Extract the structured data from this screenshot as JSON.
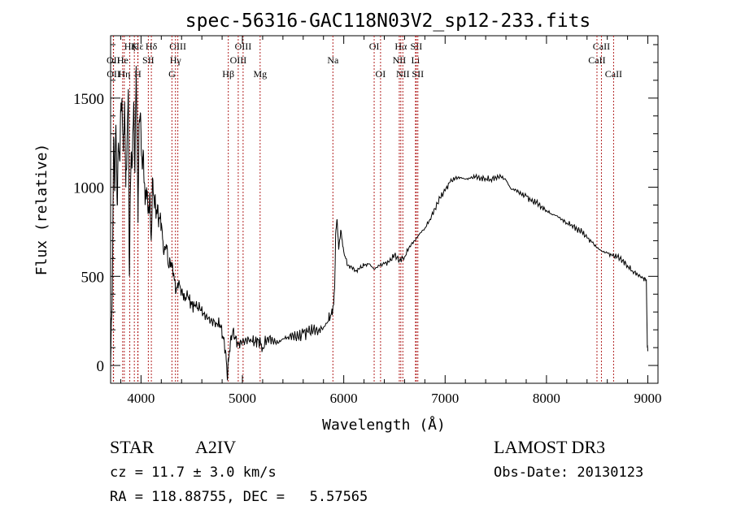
{
  "chart_data": {
    "type": "line",
    "title": "spec-56316-GAC118N03V2_sp12-233.fits",
    "xlabel": "Wavelength (Å)",
    "ylabel": "Flux (relative)",
    "xlim": [
      3700,
      9100
    ],
    "ylim": [
      -100,
      1850
    ],
    "xticks": [
      4000,
      5000,
      6000,
      7000,
      8000,
      9000
    ],
    "yticks": [
      0,
      500,
      1000,
      1500
    ],
    "grid": false,
    "line_color": "#000000",
    "marker_color": "#b22222",
    "spectrum_points": [
      [
        3700,
        0
      ],
      [
        3710,
        260
      ],
      [
        3720,
        600
      ],
      [
        3730,
        1280
      ],
      [
        3742,
        1000
      ],
      [
        3752,
        1350
      ],
      [
        3765,
        900
      ],
      [
        3778,
        1250
      ],
      [
        3790,
        1150
      ],
      [
        3800,
        1420
      ],
      [
        3812,
        1500
      ],
      [
        3825,
        1200
      ],
      [
        3838,
        1480
      ],
      [
        3850,
        1000
      ],
      [
        3862,
        1250
      ],
      [
        3875,
        1550
      ],
      [
        3885,
        500
      ],
      [
        3895,
        980
      ],
      [
        3905,
        1200
      ],
      [
        3915,
        1150
      ],
      [
        3928,
        1480
      ],
      [
        3940,
        1080
      ],
      [
        3952,
        1680
      ],
      [
        3962,
        1250
      ],
      [
        3970,
        800
      ],
      [
        3980,
        1360
      ],
      [
        3990,
        1400
      ],
      [
        4000,
        1300
      ],
      [
        4012,
        1100
      ],
      [
        4025,
        1180
      ],
      [
        4040,
        900
      ],
      [
        4055,
        1000
      ],
      [
        4070,
        850
      ],
      [
        4085,
        950
      ],
      [
        4100,
        700
      ],
      [
        4115,
        1050
      ],
      [
        4130,
        920
      ],
      [
        4145,
        880
      ],
      [
        4160,
        860
      ],
      [
        4180,
        830
      ],
      [
        4200,
        800
      ],
      [
        4225,
        620
      ],
      [
        4250,
        680
      ],
      [
        4270,
        560
      ],
      [
        4295,
        580
      ],
      [
        4320,
        520
      ],
      [
        4345,
        410
      ],
      [
        4370,
        460
      ],
      [
        4400,
        420
      ],
      [
        4430,
        380
      ],
      [
        4460,
        390
      ],
      [
        4500,
        340
      ],
      [
        4540,
        330
      ],
      [
        4580,
        320
      ],
      [
        4620,
        290
      ],
      [
        4660,
        260
      ],
      [
        4700,
        250
      ],
      [
        4740,
        240
      ],
      [
        4780,
        230
      ],
      [
        4810,
        160
      ],
      [
        4835,
        80
      ],
      [
        4850,
        -60
      ],
      [
        4862,
        20
      ],
      [
        4880,
        120
      ],
      [
        4905,
        190
      ],
      [
        4930,
        150
      ],
      [
        4960,
        120
      ],
      [
        5000,
        130
      ],
      [
        5040,
        140
      ],
      [
        5080,
        150
      ],
      [
        5120,
        130
      ],
      [
        5160,
        145
      ],
      [
        5200,
        100
      ],
      [
        5250,
        160
      ],
      [
        5300,
        140
      ],
      [
        5350,
        125
      ],
      [
        5400,
        150
      ],
      [
        5450,
        160
      ],
      [
        5500,
        170
      ],
      [
        5550,
        155
      ],
      [
        5600,
        180
      ],
      [
        5650,
        185
      ],
      [
        5700,
        200
      ],
      [
        5750,
        195
      ],
      [
        5800,
        215
      ],
      [
        5850,
        250
      ],
      [
        5880,
        300
      ],
      [
        5900,
        340
      ],
      [
        5910,
        430
      ],
      [
        5920,
        740
      ],
      [
        5935,
        820
      ],
      [
        5950,
        650
      ],
      [
        5970,
        760
      ],
      [
        6000,
        640
      ],
      [
        6040,
        560
      ],
      [
        6080,
        550
      ],
      [
        6120,
        530
      ],
      [
        6160,
        545
      ],
      [
        6200,
        560
      ],
      [
        6250,
        570
      ],
      [
        6300,
        540
      ],
      [
        6350,
        560
      ],
      [
        6400,
        570
      ],
      [
        6450,
        580
      ],
      [
        6500,
        620
      ],
      [
        6550,
        590
      ],
      [
        6600,
        610
      ],
      [
        6650,
        670
      ],
      [
        6700,
        700
      ],
      [
        6750,
        740
      ],
      [
        6800,
        770
      ],
      [
        6850,
        820
      ],
      [
        6900,
        880
      ],
      [
        6950,
        940
      ],
      [
        7000,
        980
      ],
      [
        7050,
        1030
      ],
      [
        7100,
        1050
      ],
      [
        7150,
        1055
      ],
      [
        7200,
        1045
      ],
      [
        7250,
        1050
      ],
      [
        7300,
        1060
      ],
      [
        7350,
        1050
      ],
      [
        7400,
        1050
      ],
      [
        7450,
        1045
      ],
      [
        7500,
        1055
      ],
      [
        7550,
        1060
      ],
      [
        7600,
        1040
      ],
      [
        7650,
        990
      ],
      [
        7700,
        985
      ],
      [
        7750,
        960
      ],
      [
        7800,
        950
      ],
      [
        7850,
        920
      ],
      [
        7900,
        915
      ],
      [
        7950,
        890
      ],
      [
        8000,
        870
      ],
      [
        8050,
        850
      ],
      [
        8100,
        840
      ],
      [
        8150,
        820
      ],
      [
        8200,
        800
      ],
      [
        8250,
        790
      ],
      [
        8300,
        765
      ],
      [
        8350,
        750
      ],
      [
        8400,
        715
      ],
      [
        8450,
        690
      ],
      [
        8500,
        660
      ],
      [
        8550,
        640
      ],
      [
        8600,
        630
      ],
      [
        8650,
        615
      ],
      [
        8700,
        610
      ],
      [
        8750,
        590
      ],
      [
        8800,
        560
      ],
      [
        8850,
        530
      ],
      [
        8900,
        510
      ],
      [
        8950,
        490
      ],
      [
        8985,
        480
      ],
      [
        8995,
        100
      ],
      [
        9000,
        80
      ]
    ],
    "line_markers": [
      {
        "label": "Hζ",
        "x": 3889,
        "row": 1
      },
      {
        "label": "Hε",
        "x": 3970,
        "row": 1
      },
      {
        "label": "K",
        "x": 3934,
        "row": 1
      },
      {
        "label": "Hδ",
        "x": 4102,
        "row": 1
      },
      {
        "label": "OIII",
        "x": 4363,
        "row": 1
      },
      {
        "label": "OIII",
        "x": 5007,
        "row": 1
      },
      {
        "label": "OI",
        "x": 6300,
        "row": 1
      },
      {
        "label": "Hα",
        "x": 6563,
        "row": 1
      },
      {
        "label": "SII",
        "x": 6716,
        "row": 1
      },
      {
        "label": "CaII",
        "x": 8542,
        "row": 1
      },
      {
        "label": "OII",
        "x": 3727,
        "row": 2
      },
      {
        "label": "He",
        "x": 3819,
        "row": 2
      },
      {
        "label": "SII",
        "x": 4072,
        "row": 2
      },
      {
        "label": "Hγ",
        "x": 4340,
        "row": 2
      },
      {
        "label": "OIII",
        "x": 4959,
        "row": 2
      },
      {
        "label": "Na",
        "x": 5893,
        "row": 2
      },
      {
        "label": "NII",
        "x": 6548,
        "row": 2
      },
      {
        "label": "Li",
        "x": 6708,
        "row": 2
      },
      {
        "label": "CaII",
        "x": 8498,
        "row": 2
      },
      {
        "label": "OII",
        "x": 3729,
        "row": 3
      },
      {
        "label": "Hη",
        "x": 3835,
        "row": 3
      },
      {
        "label": "H",
        "x": 3968,
        "row": 3
      },
      {
        "label": "G",
        "x": 4305,
        "row": 3
      },
      {
        "label": "Hβ",
        "x": 4861,
        "row": 3
      },
      {
        "label": "Mg",
        "x": 5175,
        "row": 3
      },
      {
        "label": "OI",
        "x": 6363,
        "row": 3
      },
      {
        "label": "NII",
        "x": 6583,
        "row": 3
      },
      {
        "label": "SII",
        "x": 6731,
        "row": 3
      },
      {
        "label": "CaII",
        "x": 8662,
        "row": 3
      }
    ]
  },
  "info": {
    "object_class": "STAR",
    "subclass": "A2IV",
    "survey": "LAMOST DR3",
    "redshift": "cz = 11.7 ± 3.0 km/s",
    "obs_date": "Obs-Date: 20130123",
    "coords": "RA = 118.88755, DEC =   5.57565"
  }
}
